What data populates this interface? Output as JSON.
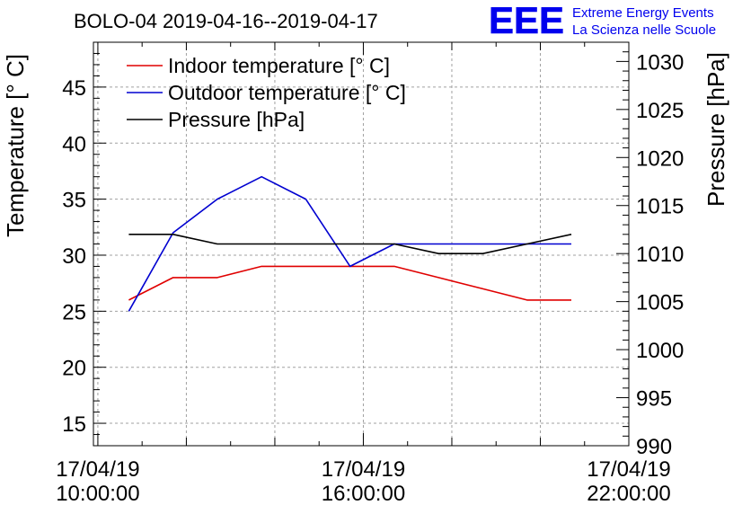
{
  "chart_data": {
    "type": "line",
    "title": "BOLO-04 2019-04-16--2019-04-17",
    "ylabel": "Temperature [° C]",
    "y2label": "Pressure [hPa]",
    "ylim": [
      13,
      49
    ],
    "y2lim": [
      990,
      1032
    ],
    "yticks": [
      "15",
      "20",
      "25",
      "30",
      "35",
      "40",
      "45"
    ],
    "y2ticks": [
      "990",
      "995",
      "1000",
      "1005",
      "1010",
      "1015",
      "1020",
      "1025",
      "1030"
    ],
    "xlim_hours": [
      9.9,
      22.0
    ],
    "xticks": [
      {
        "hour": 10,
        "date": "17/04/19",
        "time": "10:00:00"
      },
      {
        "hour": 16,
        "date": "17/04/19",
        "time": "16:00:00"
      },
      {
        "hour": 22,
        "date": "17/04/19",
        "time": "22:00:00"
      }
    ],
    "grid": true,
    "legend_position": "top-left",
    "series": [
      {
        "name": "Indoor temperature [° C]",
        "axis": "left",
        "color": "#e00000",
        "x": [
          10.7,
          11.7,
          12.7,
          13.7,
          14.7,
          15.7,
          16.7,
          17.7,
          18.7,
          19.7,
          20.7
        ],
        "y": [
          26,
          28,
          28,
          29,
          29,
          29,
          29,
          28,
          27,
          26,
          26
        ]
      },
      {
        "name": "Outdoor temperature [° C]",
        "axis": "left",
        "color": "#0000d0",
        "x": [
          10.7,
          11.7,
          12.7,
          13.7,
          14.7,
          15.7,
          16.7,
          17.7,
          18.7,
          19.7,
          20.7
        ],
        "y": [
          25,
          32,
          35,
          37,
          35,
          29,
          31,
          31,
          31,
          31,
          31
        ]
      },
      {
        "name": "Pressure [hPa]",
        "axis": "right",
        "color": "#000000",
        "x": [
          10.7,
          11.7,
          12.7,
          13.7,
          14.7,
          15.7,
          16.7,
          17.7,
          18.7,
          19.7,
          20.7
        ],
        "y": [
          1012,
          1012,
          1011,
          1011,
          1011,
          1011,
          1011,
          1010,
          1010,
          1011,
          1012
        ]
      }
    ]
  },
  "logo": {
    "mark": "EEE",
    "line1": "Extreme Energy Events",
    "line2": "La Scienza nelle Scuole",
    "color": "#0000ee"
  }
}
